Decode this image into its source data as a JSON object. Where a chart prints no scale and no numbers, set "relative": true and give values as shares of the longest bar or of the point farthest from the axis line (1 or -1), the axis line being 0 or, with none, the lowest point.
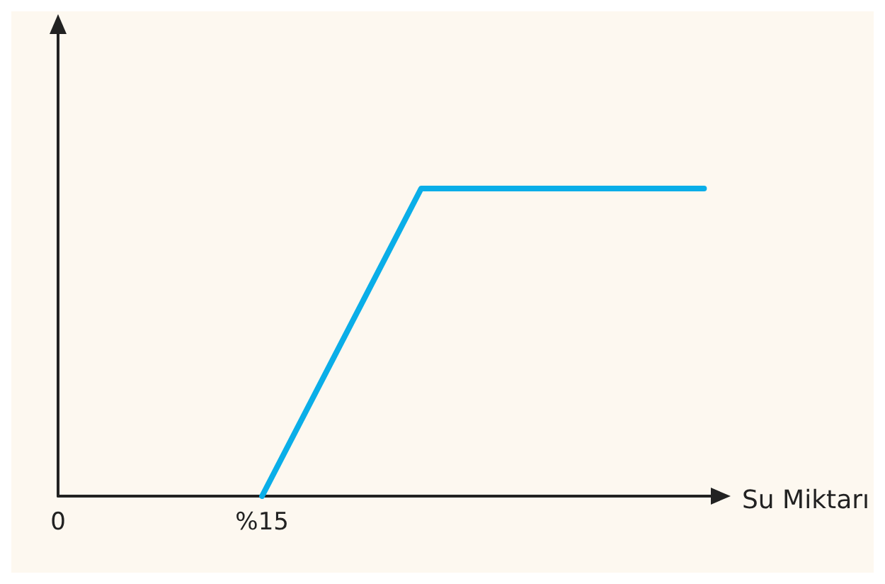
{
  "chart_data": {
    "type": "line",
    "xlabel": "Su Miktarı",
    "relative": true,
    "x": [
      15,
      26.7,
      47.5
    ],
    "series": [
      {
        "color": "#0aaee8",
        "values": [
          0,
          1,
          1
        ]
      }
    ],
    "xlim": [
      0,
      48
    ],
    "xticks": [
      0,
      {
        "value": 15,
        "label": "%15"
      }
    ],
    "grid": false,
    "marker": "none",
    "line_style": "solid"
  }
}
